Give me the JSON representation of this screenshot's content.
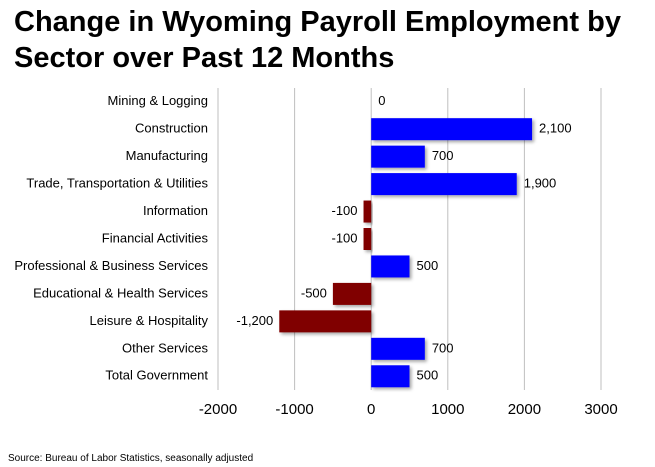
{
  "chart_data": {
    "type": "hbar",
    "title": "Change in Wyoming Payroll Employment by Sector over Past 12 Months",
    "source": "Source: Bureau of Labor Statistics, seasonally adjusted",
    "categories": [
      "Mining & Logging",
      "Construction",
      "Manufacturing",
      "Trade, Transportation & Utilities",
      "Information",
      "Financial Activities",
      "Professional & Business Services",
      "Educational & Health Services",
      "Leisure & Hospitality",
      "Other Services",
      "Total Government"
    ],
    "values": [
      0,
      2100,
      700,
      1900,
      -100,
      -100,
      500,
      -500,
      -1200,
      700,
      500
    ],
    "value_labels": [
      "0",
      "2,100",
      "700",
      "1,900",
      "-100",
      "-100",
      "500",
      "-500",
      "-1,200",
      "700",
      "500"
    ],
    "color": "#0000ff",
    "negative_color": "#800000",
    "xlim": [
      -2000,
      3000
    ],
    "xticks": [
      -2000,
      -1000,
      0,
      1000,
      2000,
      3000
    ],
    "grid": true
  }
}
